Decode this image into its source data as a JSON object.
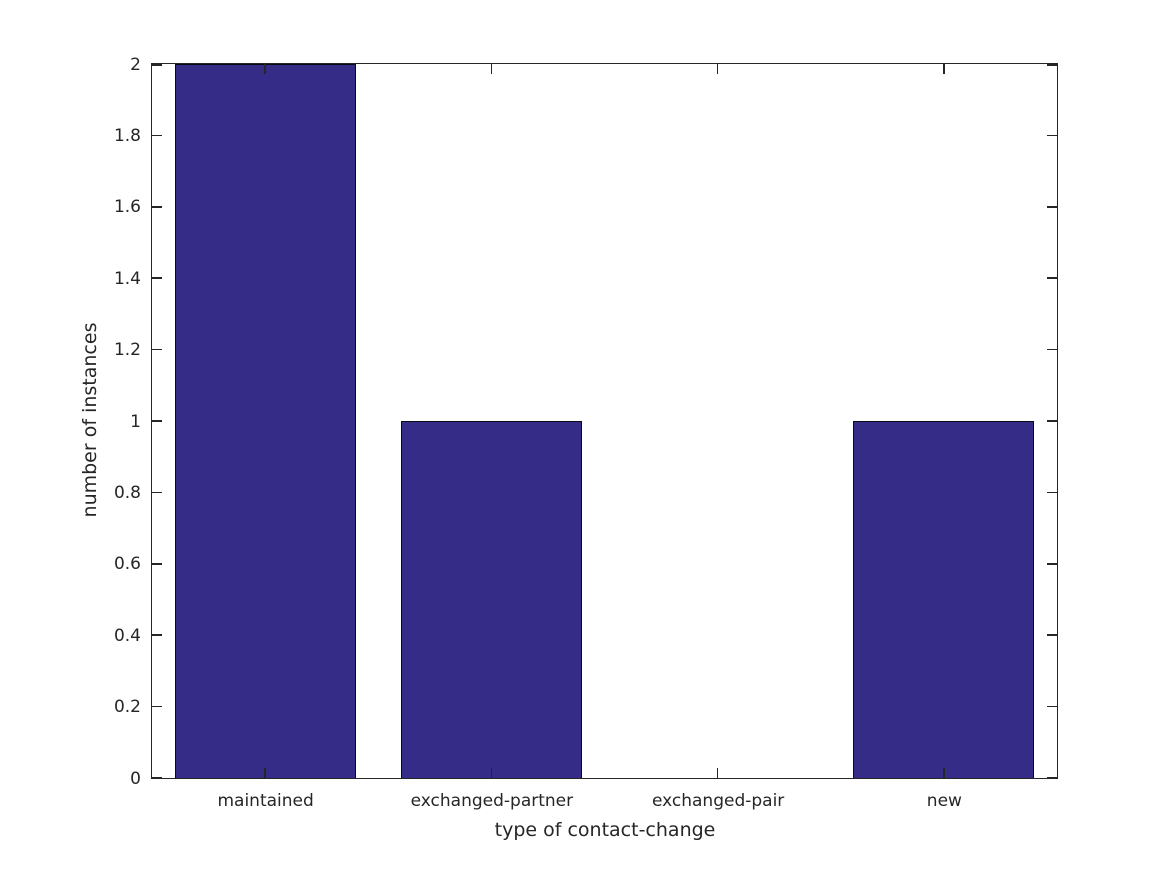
{
  "figure": {
    "background": "#ffffff"
  },
  "chart_data": {
    "type": "bar",
    "title": "",
    "categories": [
      "maintained",
      "exchanged-partner",
      "exchanged-pair",
      "new"
    ],
    "values": [
      2,
      1,
      0,
      1
    ],
    "xlabel": "type of contact-change",
    "ylabel": "number of instances",
    "ylim": [
      0,
      2
    ],
    "yticks": [
      0,
      0.2,
      0.4,
      0.6,
      0.8,
      1,
      1.2,
      1.4,
      1.6,
      1.8,
      2
    ],
    "ytick_labels": [
      "0",
      "0.2",
      "0.4",
      "0.6",
      "0.8",
      "1",
      "1.2",
      "1.4",
      "1.6",
      "1.8",
      "2"
    ],
    "bar_width_fraction": 0.8,
    "grid": false,
    "box": true,
    "tick_direction": "in",
    "colors": {
      "bar_fill": "#352c87",
      "bar_edge": "#0a0a14",
      "axis": "#262626",
      "text": "#262626"
    }
  }
}
